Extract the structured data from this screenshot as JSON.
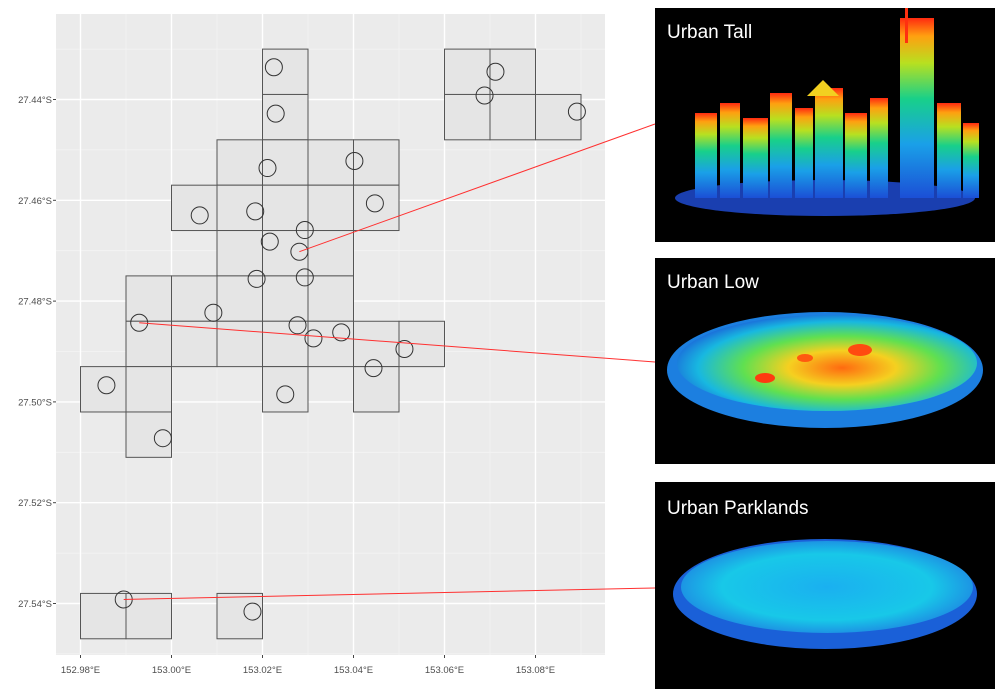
{
  "map": {
    "x_ticks": [
      "152.98°E",
      "153.00°E",
      "153.02°E",
      "153.04°E",
      "153.06°E",
      "153.08°E"
    ],
    "y_ticks": [
      "27.44°S",
      "27.46°S",
      "27.48°S",
      "27.50°S",
      "27.52°S",
      "27.54°S"
    ],
    "x_values": [
      152.98,
      153.0,
      153.02,
      153.04,
      153.06,
      153.08
    ],
    "y_values": [
      -27.44,
      -27.46,
      -27.48,
      -27.5,
      -27.52,
      -27.54
    ],
    "grid_cells": [
      [
        153.02,
        -27.43
      ],
      [
        153.02,
        -27.439
      ],
      [
        153.01,
        -27.448
      ],
      [
        153.02,
        -27.448
      ],
      [
        153.03,
        -27.448
      ],
      [
        153.04,
        -27.448
      ],
      [
        153.0,
        -27.457
      ],
      [
        153.01,
        -27.457
      ],
      [
        153.02,
        -27.457
      ],
      [
        153.03,
        -27.457
      ],
      [
        153.04,
        -27.457
      ],
      [
        153.01,
        -27.466
      ],
      [
        153.02,
        -27.466
      ],
      [
        153.03,
        -27.466
      ],
      [
        152.99,
        -27.475
      ],
      [
        153.0,
        -27.475
      ],
      [
        153.01,
        -27.475
      ],
      [
        153.02,
        -27.475
      ],
      [
        153.03,
        -27.475
      ],
      [
        152.99,
        -27.484
      ],
      [
        153.0,
        -27.484
      ],
      [
        153.01,
        -27.484
      ],
      [
        153.02,
        -27.484
      ],
      [
        153.03,
        -27.484
      ],
      [
        153.04,
        -27.484
      ],
      [
        153.05,
        -27.484
      ],
      [
        152.98,
        -27.493
      ],
      [
        152.99,
        -27.493
      ],
      [
        153.02,
        -27.493
      ],
      [
        153.04,
        -27.493
      ],
      [
        152.99,
        -27.502
      ],
      [
        152.98,
        -27.538
      ],
      [
        152.99,
        -27.538
      ],
      [
        153.01,
        -27.538
      ],
      [
        153.06,
        -27.43
      ],
      [
        153.07,
        -27.43
      ],
      [
        153.06,
        -27.439
      ],
      [
        153.07,
        -27.439
      ],
      [
        153.08,
        -27.439
      ]
    ],
    "sample_points": [
      [
        153.0225,
        -27.4336
      ],
      [
        153.0229,
        -27.4428
      ],
      [
        153.0712,
        -27.4345
      ],
      [
        153.0688,
        -27.4392
      ],
      [
        153.0891,
        -27.4424
      ],
      [
        153.0211,
        -27.4536
      ],
      [
        153.0402,
        -27.4522
      ],
      [
        153.0447,
        -27.4606
      ],
      [
        153.0062,
        -27.463
      ],
      [
        153.0184,
        -27.4622
      ],
      [
        153.0293,
        -27.4659
      ],
      [
        153.0216,
        -27.4682
      ],
      [
        153.0281,
        -27.4702
      ],
      [
        153.0187,
        -27.4756
      ],
      [
        153.0293,
        -27.4753
      ],
      [
        152.9929,
        -27.4843
      ],
      [
        153.0092,
        -27.4823
      ],
      [
        153.0277,
        -27.4848
      ],
      [
        153.0312,
        -27.4874
      ],
      [
        153.0373,
        -27.4862
      ],
      [
        153.0512,
        -27.4895
      ],
      [
        153.0444,
        -27.4933
      ],
      [
        152.9857,
        -27.4967
      ],
      [
        153.025,
        -27.4985
      ],
      [
        152.9981,
        -27.5072
      ],
      [
        152.9895,
        -27.5392
      ],
      [
        153.0178,
        -27.5416
      ]
    ],
    "links": [
      {
        "point": [
          153.0281,
          -27.4702
        ],
        "panel": 0
      },
      {
        "point": [
          152.9929,
          -27.4843
        ],
        "panel": 1
      },
      {
        "point": [
          152.9895,
          -27.5392
        ],
        "panel": 2
      }
    ]
  },
  "panels": [
    {
      "title": "Urban Tall"
    },
    {
      "title": "Urban Low"
    },
    {
      "title": "Urban Parklands"
    }
  ],
  "colors": {
    "map_background": "#ebebeb",
    "grid_major": "#ffffff",
    "grid_minor": "#f4f4f4",
    "cell_fill": "#e5e5e5",
    "cell_stroke": "#555555",
    "point_stroke": "#333333",
    "link_line": "#ff3030",
    "tick_text": "#4d4d4d"
  }
}
